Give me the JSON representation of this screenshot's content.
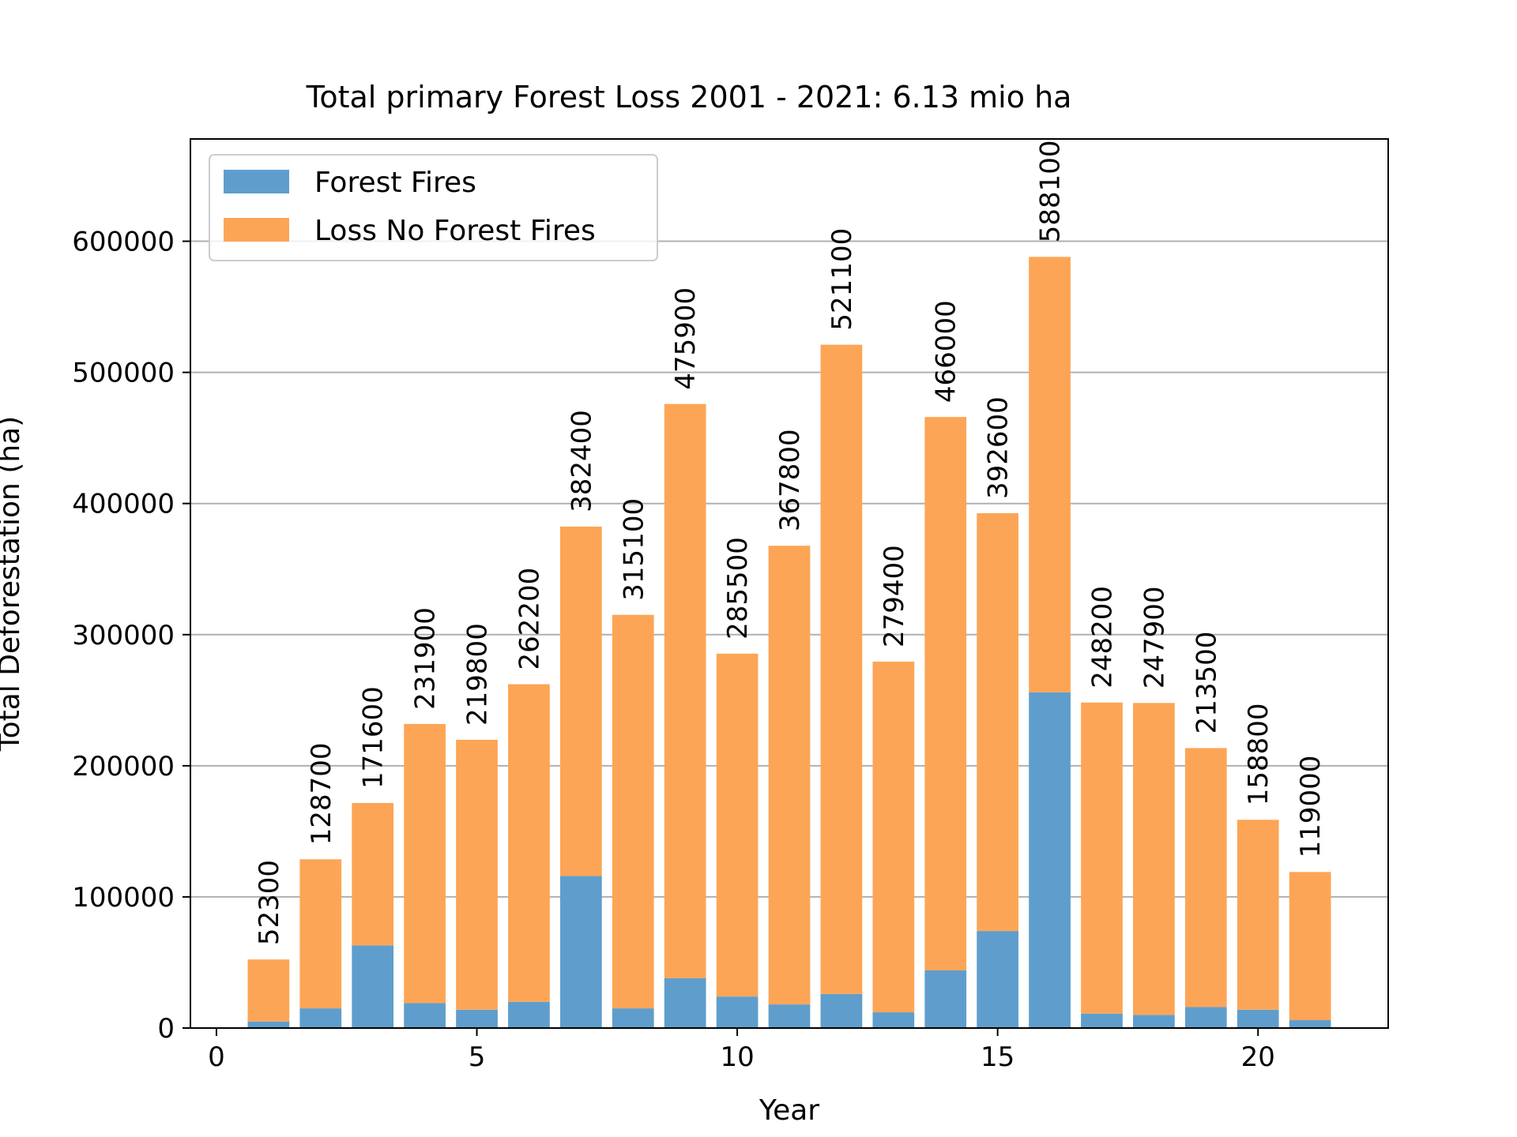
{
  "chart_data": {
    "type": "bar",
    "stacked": true,
    "title": "Total primary Forest Loss 2001 - 2021: 6.13 mio ha",
    "xlabel": "Year",
    "ylabel": "Total Deforestation (ha)",
    "xlim": [
      -0.5,
      22.5
    ],
    "ylim": [
      0,
      678000
    ],
    "xticks": [
      0,
      5,
      10,
      15,
      20
    ],
    "yticks": [
      0,
      100000,
      200000,
      300000,
      400000,
      500000,
      600000
    ],
    "grid": "y",
    "legend_position": "top-left",
    "x": [
      1,
      2,
      3,
      4,
      5,
      6,
      7,
      8,
      9,
      10,
      11,
      12,
      13,
      14,
      15,
      16,
      17,
      18,
      19,
      20,
      21
    ],
    "totals": [
      52300,
      128700,
      171600,
      231900,
      219800,
      262200,
      382400,
      315100,
      475900,
      285500,
      367800,
      521100,
      279400,
      466000,
      392600,
      588100,
      248200,
      247900,
      213500,
      158800,
      119000
    ],
    "total_labels": [
      "52300",
      "128700",
      "171600",
      "231900",
      "219800",
      "262200",
      "382400",
      "315100",
      "475900",
      "285500",
      "367800",
      "521100",
      "279400",
      "466000",
      "392600",
      "588100",
      "248200",
      "247900",
      "213500",
      "158800",
      "119000"
    ],
    "series": [
      {
        "name": "Forest Fires",
        "color": "#5f9ecc",
        "values": [
          5000,
          15000,
          63000,
          19000,
          14000,
          20000,
          116000,
          15000,
          38000,
          24000,
          18000,
          26000,
          12000,
          44000,
          74000,
          256000,
          11000,
          10000,
          16000,
          14000,
          6000
        ]
      },
      {
        "name": "Loss No Forest Fires",
        "color": "#fda556",
        "values": [
          47300,
          113700,
          108600,
          212900,
          205800,
          242200,
          266400,
          300100,
          437900,
          261500,
          349800,
          495100,
          267400,
          422000,
          318600,
          332100,
          237200,
          237900,
          197500,
          144800,
          113000
        ]
      }
    ]
  }
}
